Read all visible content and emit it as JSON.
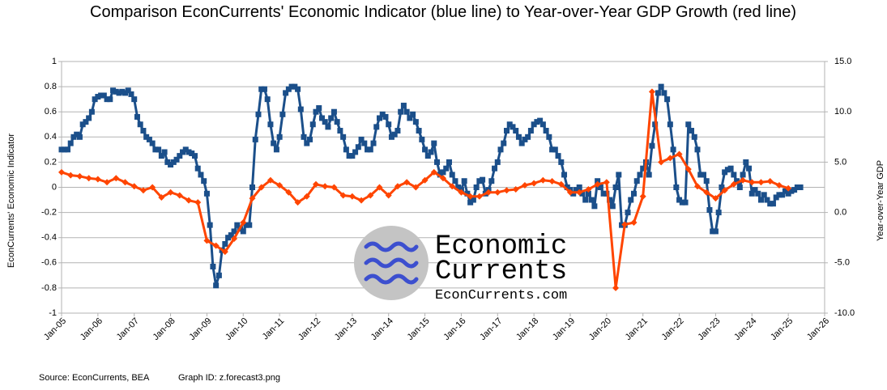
{
  "chart_data": {
    "type": "line",
    "title": "Comparison EconCurrents' Economic Indicator (blue line) to Year-over-Year GDP Growth (red line)",
    "y_label": "EconCurrents' Economic Indicator",
    "y2_label": "Year-over-Year GDP",
    "source": "Source:  EconCurrents, BEA",
    "graph_id": "Graph ID: z.forecast3.png",
    "annotations": [
      "Economic",
      "Currents",
      "EconCurrents.com"
    ],
    "xlim": [
      "2005-01",
      "2026-01"
    ],
    "xticks": [
      {
        "value": "2005-01",
        "label": "Jan-05"
      },
      {
        "value": "2006-01",
        "label": "Jan-06"
      },
      {
        "value": "2007-01",
        "label": "Jan-07"
      },
      {
        "value": "2008-01",
        "label": "Jan-08"
      },
      {
        "value": "2009-01",
        "label": "Jan-09"
      },
      {
        "value": "2010-01",
        "label": "Jan-10"
      },
      {
        "value": "2011-01",
        "label": "Jan-11"
      },
      {
        "value": "2012-01",
        "label": "Jan-12"
      },
      {
        "value": "2013-01",
        "label": "Jan-13"
      },
      {
        "value": "2014-01",
        "label": "Jan-14"
      },
      {
        "value": "2015-01",
        "label": "Jan-15"
      },
      {
        "value": "2016-01",
        "label": "Jan-16"
      },
      {
        "value": "2017-01",
        "label": "Jan-17"
      },
      {
        "value": "2018-01",
        "label": "Jan-18"
      },
      {
        "value": "2019-01",
        "label": "Jan-19"
      },
      {
        "value": "2020-01",
        "label": "Jan-20"
      },
      {
        "value": "2021-01",
        "label": "Jan-21"
      },
      {
        "value": "2022-01",
        "label": "Jan-22"
      },
      {
        "value": "2023-01",
        "label": "Jan-23"
      },
      {
        "value": "2024-01",
        "label": "Jan-24"
      },
      {
        "value": "2025-01",
        "label": "Jan-25"
      },
      {
        "value": "2026-01",
        "label": "Jan-26"
      }
    ],
    "ylim": [
      -1,
      1
    ],
    "yticks": [
      1,
      0.8,
      0.6,
      0.4,
      0.2,
      0,
      -0.2,
      -0.4,
      -0.6,
      -0.8,
      -1
    ],
    "y2lim": [
      -10,
      15
    ],
    "y2ticks": [
      {
        "value": 15,
        "label": "15.0"
      },
      {
        "value": 10,
        "label": "10.0"
      },
      {
        "value": 5,
        "label": "5.0"
      },
      {
        "value": 0,
        "label": "0.0"
      },
      {
        "value": -5,
        "label": "-5.0"
      },
      {
        "value": -10,
        "label": "-10.0"
      }
    ],
    "grid": true,
    "series": [
      {
        "color": "#1b4f8a",
        "marker": "square",
        "x": [
          "2005-01",
          "2005-02",
          "2005-03",
          "2005-04",
          "2005-05",
          "2005-06",
          "2005-07",
          "2005-08",
          "2005-09",
          "2005-10",
          "2005-11",
          "2005-12",
          "2006-01",
          "2006-02",
          "2006-03",
          "2006-04",
          "2006-05",
          "2006-06",
          "2006-07",
          "2006-08",
          "2006-09",
          "2006-10",
          "2006-11",
          "2006-12",
          "2007-01",
          "2007-02",
          "2007-03",
          "2007-04",
          "2007-05",
          "2007-06",
          "2007-07",
          "2007-08",
          "2007-09",
          "2007-10",
          "2007-11",
          "2007-12",
          "2008-01",
          "2008-02",
          "2008-03",
          "2008-04",
          "2008-05",
          "2008-06",
          "2008-07",
          "2008-08",
          "2008-09",
          "2008-10",
          "2008-11",
          "2008-12",
          "2009-01",
          "2009-02",
          "2009-03",
          "2009-04",
          "2009-05",
          "2009-06",
          "2009-07",
          "2009-08",
          "2009-09",
          "2009-10",
          "2009-11",
          "2009-12",
          "2010-01",
          "2010-02",
          "2010-03",
          "2010-04",
          "2010-05",
          "2010-06",
          "2010-07",
          "2010-08",
          "2010-09",
          "2010-10",
          "2010-11",
          "2010-12",
          "2011-01",
          "2011-02",
          "2011-03",
          "2011-04",
          "2011-05",
          "2011-06",
          "2011-07",
          "2011-08",
          "2011-09",
          "2011-10",
          "2011-11",
          "2011-12",
          "2012-01",
          "2012-02",
          "2012-03",
          "2012-04",
          "2012-05",
          "2012-06",
          "2012-07",
          "2012-08",
          "2012-09",
          "2012-10",
          "2012-11",
          "2012-12",
          "2013-01",
          "2013-02",
          "2013-03",
          "2013-04",
          "2013-05",
          "2013-06",
          "2013-07",
          "2013-08",
          "2013-09",
          "2013-10",
          "2013-11",
          "2013-12",
          "2014-01",
          "2014-02",
          "2014-03",
          "2014-04",
          "2014-05",
          "2014-06",
          "2014-07",
          "2014-08",
          "2014-09",
          "2014-10",
          "2014-11",
          "2014-12",
          "2015-01",
          "2015-02",
          "2015-03",
          "2015-04",
          "2015-05",
          "2015-06",
          "2015-07",
          "2015-08",
          "2015-09",
          "2015-10",
          "2015-11",
          "2015-12",
          "2016-01",
          "2016-02",
          "2016-03",
          "2016-04",
          "2016-05",
          "2016-06",
          "2016-07",
          "2016-08",
          "2016-09",
          "2016-10",
          "2016-11",
          "2016-12",
          "2017-01",
          "2017-02",
          "2017-03",
          "2017-04",
          "2017-05",
          "2017-06",
          "2017-07",
          "2017-08",
          "2017-09",
          "2017-10",
          "2017-11",
          "2017-12",
          "2018-01",
          "2018-02",
          "2018-03",
          "2018-04",
          "2018-05",
          "2018-06",
          "2018-07",
          "2018-08",
          "2018-09",
          "2018-10",
          "2018-11",
          "2018-12",
          "2019-01",
          "2019-02",
          "2019-03",
          "2019-04",
          "2019-05",
          "2019-06",
          "2019-07",
          "2019-08",
          "2019-09",
          "2019-10",
          "2019-11",
          "2019-12",
          "2020-01",
          "2020-02",
          "2020-03",
          "2020-04",
          "2020-05",
          "2020-06",
          "2020-07",
          "2020-08",
          "2020-09",
          "2020-10",
          "2020-11",
          "2020-12",
          "2021-01",
          "2021-02",
          "2021-03",
          "2021-04",
          "2021-05",
          "2021-06",
          "2021-07",
          "2021-08",
          "2021-09",
          "2021-10",
          "2021-11",
          "2021-12",
          "2022-01",
          "2022-02",
          "2022-03",
          "2022-04",
          "2022-05",
          "2022-06",
          "2022-07",
          "2022-08",
          "2022-09",
          "2022-10",
          "2022-11",
          "2022-12",
          "2023-01",
          "2023-02",
          "2023-03",
          "2023-04",
          "2023-05",
          "2023-06",
          "2023-07",
          "2023-08",
          "2023-09",
          "2023-10",
          "2023-11",
          "2023-12",
          "2024-01",
          "2024-02",
          "2024-03",
          "2024-04",
          "2024-05",
          "2024-06",
          "2024-07",
          "2024-08",
          "2024-09",
          "2024-10",
          "2024-11",
          "2024-12",
          "2025-01",
          "2025-02",
          "2025-03",
          "2025-04",
          "2025-05"
        ],
        "values": [
          0.3,
          0.3,
          0.3,
          0.35,
          0.4,
          0.42,
          0.4,
          0.5,
          0.52,
          0.55,
          0.6,
          0.7,
          0.72,
          0.73,
          0.73,
          0.7,
          0.7,
          0.77,
          0.76,
          0.75,
          0.76,
          0.75,
          0.77,
          0.74,
          0.7,
          0.56,
          0.5,
          0.45,
          0.4,
          0.38,
          0.35,
          0.3,
          0.3,
          0.25,
          0.28,
          0.2,
          0.18,
          0.2,
          0.22,
          0.25,
          0.28,
          0.3,
          0.28,
          0.27,
          0.25,
          0.15,
          0.1,
          0.05,
          -0.05,
          -0.3,
          -0.63,
          -0.78,
          -0.7,
          -0.5,
          -0.45,
          -0.4,
          -0.38,
          -0.35,
          -0.3,
          -0.33,
          -0.35,
          -0.3,
          -0.3,
          0,
          0.38,
          0.58,
          0.78,
          0.78,
          0.7,
          0.5,
          0.35,
          0.3,
          0.4,
          0.58,
          0.75,
          0.78,
          0.8,
          0.8,
          0.78,
          0.62,
          0.4,
          0.35,
          0.38,
          0.5,
          0.6,
          0.63,
          0.55,
          0.52,
          0.48,
          0.55,
          0.6,
          0.52,
          0.45,
          0.4,
          0.3,
          0.25,
          0.25,
          0.28,
          0.32,
          0.38,
          0.35,
          0.3,
          0.3,
          0.35,
          0.48,
          0.55,
          0.58,
          0.56,
          0.5,
          0.4,
          0.42,
          0.45,
          0.6,
          0.65,
          0.6,
          0.55,
          0.58,
          0.52,
          0.45,
          0.38,
          0.3,
          0.25,
          0.28,
          0.35,
          0.2,
          0.1,
          0.12,
          0.15,
          0.2,
          0.1,
          0.05,
          0,
          -0.02,
          0.05,
          -0.05,
          -0.12,
          -0.1,
          0,
          0.05,
          0.06,
          -0.05,
          -0.02,
          0.05,
          0.15,
          0.2,
          0.3,
          0.35,
          0.45,
          0.5,
          0.48,
          0.45,
          0.4,
          0.35,
          0.38,
          0.4,
          0.45,
          0.5,
          0.52,
          0.53,
          0.5,
          0.45,
          0.4,
          0.3,
          0.3,
          0.25,
          0.2,
          0.1,
          0,
          -0.02,
          -0.05,
          -0.02,
          0,
          -0.05,
          -0.1,
          -0.05,
          -0.1,
          -0.15,
          0.05,
          0,
          -0.05,
          -0.05,
          -0.1,
          -0.15,
          0,
          0.1,
          -0.3,
          -0.3,
          -0.2,
          -0.1,
          -0.05,
          0.05,
          0.1,
          0.15,
          0.2,
          0.1,
          0.33,
          0.5,
          0.75,
          0.8,
          0.75,
          0.7,
          0.5,
          0.3,
          0,
          -0.1,
          -0.12,
          -0.12,
          0.5,
          0.45,
          0.4,
          0.3,
          0.1,
          0.1,
          0.05,
          -0.18,
          -0.35,
          -0.35,
          -0.2,
          0,
          0.12,
          0.14,
          0.15,
          0.1,
          0.05,
          0,
          0.1,
          0.2,
          0.15,
          -0.05,
          -0.02,
          -0.05,
          -0.1,
          -0.06,
          -0.1,
          -0.13,
          -0.13,
          -0.08,
          -0.06,
          -0.06,
          -0.03,
          -0.05,
          -0.03,
          -0.02,
          0,
          0
        ]
      },
      {
        "color": "#ff4500",
        "marker": "diamond",
        "axis": "y2",
        "x": [
          "2005-01",
          "2005-04",
          "2005-07",
          "2005-10",
          "2006-01",
          "2006-04",
          "2006-07",
          "2006-10",
          "2007-01",
          "2007-04",
          "2007-07",
          "2007-10",
          "2008-01",
          "2008-04",
          "2008-07",
          "2008-10",
          "2009-01",
          "2009-04",
          "2009-07",
          "2009-10",
          "2010-01",
          "2010-04",
          "2010-07",
          "2010-10",
          "2011-01",
          "2011-04",
          "2011-07",
          "2011-10",
          "2012-01",
          "2012-04",
          "2012-07",
          "2012-10",
          "2013-01",
          "2013-04",
          "2013-07",
          "2013-10",
          "2014-01",
          "2014-04",
          "2014-07",
          "2014-10",
          "2015-01",
          "2015-04",
          "2015-07",
          "2015-10",
          "2016-01",
          "2016-04",
          "2016-07",
          "2016-10",
          "2017-01",
          "2017-04",
          "2017-07",
          "2017-10",
          "2018-01",
          "2018-04",
          "2018-07",
          "2018-10",
          "2019-01",
          "2019-04",
          "2019-07",
          "2019-10",
          "2020-01",
          "2020-04",
          "2020-07",
          "2020-10",
          "2021-01",
          "2021-04",
          "2021-07",
          "2021-10",
          "2022-01",
          "2022-04",
          "2022-07",
          "2022-10",
          "2023-01",
          "2023-04",
          "2023-07",
          "2023-10",
          "2024-01",
          "2024-04",
          "2024-07",
          "2024-10",
          "2025-01"
        ],
        "values": [
          4.0,
          3.7,
          3.6,
          3.4,
          3.3,
          3.0,
          3.4,
          3.0,
          2.6,
          2.2,
          2.5,
          1.5,
          2.0,
          1.7,
          1.2,
          1.0,
          -2.8,
          -3.3,
          -3.9,
          -2.6,
          -1.0,
          1.4,
          2.5,
          3.2,
          2.7,
          2.0,
          1.0,
          1.6,
          2.8,
          2.6,
          2.5,
          1.7,
          1.6,
          1.2,
          1.7,
          2.5,
          1.7,
          2.6,
          3.0,
          2.5,
          3.2,
          4.0,
          3.4,
          2.6,
          2.0,
          1.6,
          1.6,
          2.0,
          2.0,
          2.2,
          2.3,
          2.7,
          2.9,
          3.2,
          3.1,
          2.8,
          2.0,
          2.0,
          2.3,
          2.8,
          3.0,
          -7.5,
          -1.2,
          -1.0,
          1.6,
          12.0,
          5.0,
          5.4,
          5.8,
          4.3,
          2.6,
          2.0,
          1.4,
          2.2,
          2.8,
          3.2,
          3.0,
          3.0,
          3.1,
          2.7,
          2.4
        ]
      }
    ]
  }
}
